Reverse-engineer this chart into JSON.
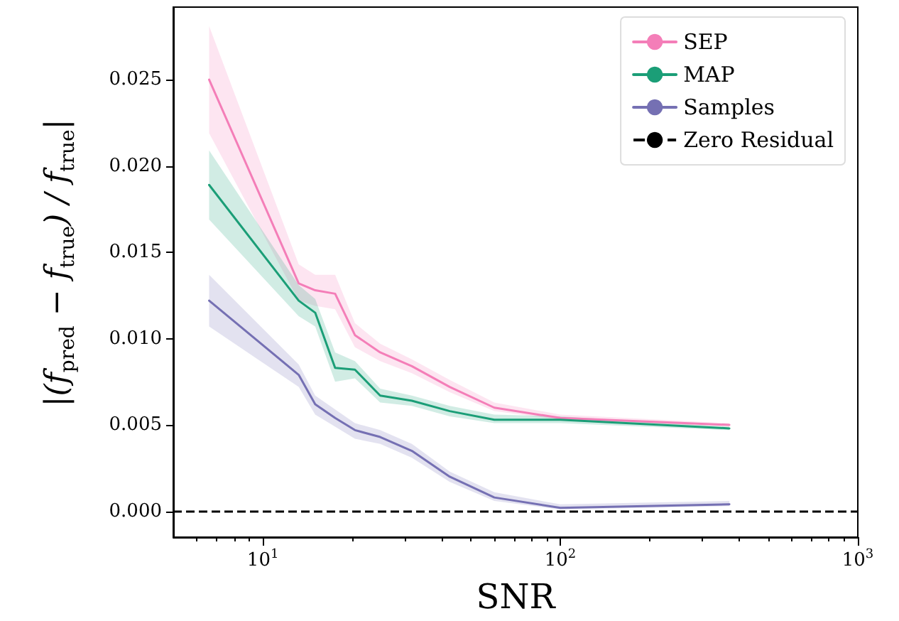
{
  "chart_data": {
    "type": "line",
    "xlabel": "SNR",
    "ylabel": "|(f$_{pred}$ − f$_{true}$) / f$_{true}$|",
    "log": "x",
    "xlim": [
      5,
      1000
    ],
    "xticks": [
      {
        "value": 10,
        "label": "10$^{1}$"
      },
      {
        "value": 100,
        "label": "10$^{2}$"
      },
      {
        "value": 1000,
        "label": "10$^{3}$"
      }
    ],
    "ylim": [
      -0.0015,
      0.0292
    ],
    "yticks": [
      {
        "value": 0,
        "label": "0.000"
      },
      {
        "value": 0.005,
        "label": "0.005"
      },
      {
        "value": 0.01,
        "label": "0.010"
      },
      {
        "value": 0.015,
        "label": "0.015"
      },
      {
        "value": 0.02,
        "label": "0.020"
      },
      {
        "value": 0.025,
        "label": "0.025"
      }
    ],
    "x": [
      6.6,
      13.2,
      15,
      17.5,
      20.4,
      24.8,
      31.7,
      42.5,
      60,
      100,
      370
    ],
    "series": [
      {
        "name": "SEP",
        "color": "#f47eb8",
        "values": [
          0.025,
          0.0132,
          0.0128,
          0.0126,
          0.0102,
          0.0092,
          0.0084,
          0.0072,
          0.006,
          0.0054,
          0.005
        ],
        "lower": [
          0.0219,
          0.0122,
          0.0119,
          0.0117,
          0.0095,
          0.0087,
          0.008,
          0.0069,
          0.0058,
          0.0053,
          0.0049
        ],
        "upper": [
          0.0281,
          0.0143,
          0.0137,
          0.0137,
          0.0109,
          0.0097,
          0.0088,
          0.0076,
          0.0063,
          0.0056,
          0.0051
        ]
      },
      {
        "name": "MAP",
        "color": "#1b9e77",
        "values": [
          0.0189,
          0.0122,
          0.0115,
          0.0083,
          0.0082,
          0.0067,
          0.0064,
          0.0058,
          0.0053,
          0.0053,
          0.0048
        ],
        "lower": [
          0.0169,
          0.0113,
          0.0107,
          0.0075,
          0.0077,
          0.0063,
          0.0061,
          0.0055,
          0.0051,
          0.0051,
          0.0047
        ],
        "upper": [
          0.0209,
          0.0131,
          0.0123,
          0.0092,
          0.0087,
          0.0071,
          0.0067,
          0.0061,
          0.0056,
          0.0055,
          0.0049
        ]
      },
      {
        "name": "Samples",
        "color": "#7570b3",
        "values": [
          0.0122,
          0.0079,
          0.0062,
          0.0054,
          0.0047,
          0.0043,
          0.0035,
          0.002,
          0.0008,
          0.0002,
          0.0004
        ],
        "lower": [
          0.0107,
          0.0072,
          0.0056,
          0.0049,
          0.0042,
          0.0039,
          0.0031,
          0.0017,
          0.0006,
          0.0001,
          0.0003
        ],
        "upper": [
          0.0137,
          0.0085,
          0.0067,
          0.0059,
          0.0051,
          0.0047,
          0.0039,
          0.0023,
          0.0011,
          0.0004,
          0.0006
        ]
      }
    ],
    "ref_lines": [
      {
        "axis": "y",
        "value": 0,
        "label": "Zero Residual",
        "color": "#000000",
        "line_style": "dashed"
      }
    ],
    "legend": "top right",
    "grid": false,
    "marker": "none",
    "line_style": "solid"
  }
}
